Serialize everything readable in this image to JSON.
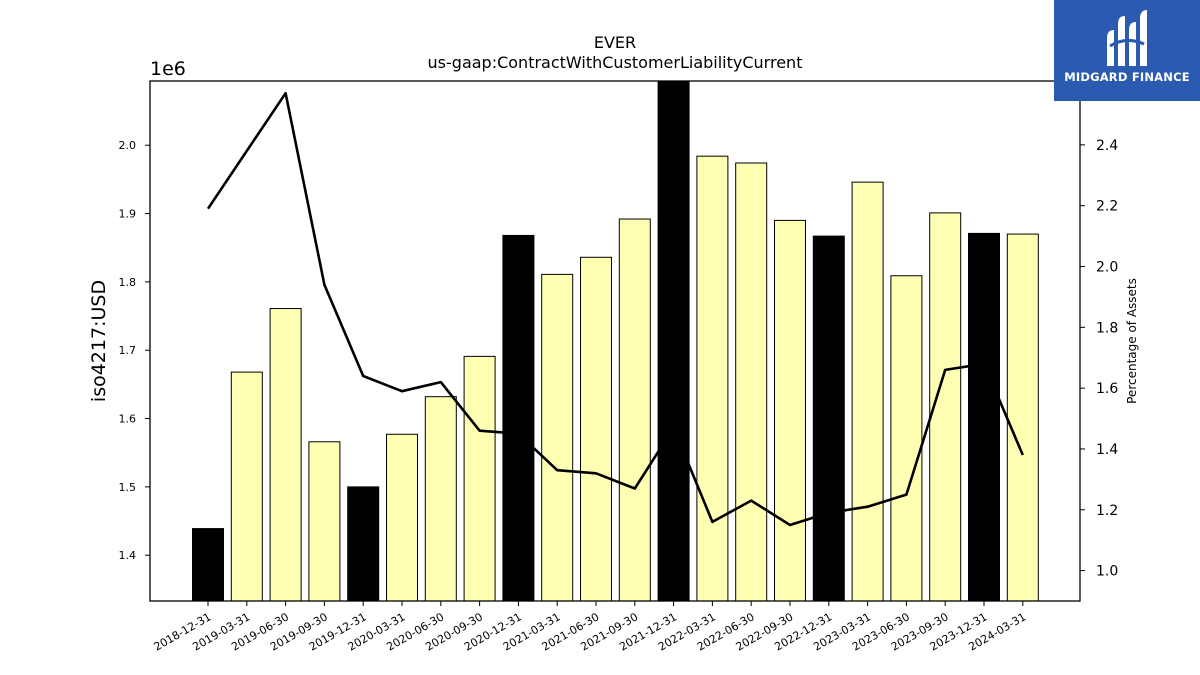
{
  "chart_data": {
    "type": "bar",
    "title": "EVER",
    "subtitle": "us-gaap:ContractWithCustomerLiabilityCurrent",
    "ylabel": "iso4217:USD",
    "y_offset_label": "1e6",
    "y2label": "Percentage of Assets",
    "categories": [
      "2018-12-31",
      "2019-03-31",
      "2019-06-30",
      "2019-09-30",
      "2019-12-31",
      "2020-03-31",
      "2020-06-30",
      "2020-09-30",
      "2020-12-31",
      "2021-03-31",
      "2021-06-30",
      "2021-09-30",
      "2021-12-31",
      "2022-03-31",
      "2022-06-30",
      "2022-09-30",
      "2022-12-31",
      "2023-03-31",
      "2023-06-30",
      "2023-09-30",
      "2023-12-31",
      "2024-03-31"
    ],
    "series": [
      {
        "values": [
          1439000,
          1668000,
          1761000,
          1566000,
          1500000,
          1577000,
          1632000,
          1691000,
          1868000,
          1811000,
          1836000,
          1892000,
          2094000,
          1984000,
          1974000,
          1890000,
          1867000,
          1946000,
          1809000,
          1901000,
          1871000,
          1870000
        ],
        "highlight": [
          true,
          false,
          false,
          false,
          true,
          false,
          false,
          false,
          true,
          false,
          false,
          false,
          true,
          false,
          false,
          false,
          true,
          false,
          false,
          false,
          true,
          false
        ],
        "colors": {
          "quarter": "#ffffb3",
          "year_end": "#000000"
        }
      },
      {
        "axis": "right",
        "type": "line",
        "color": "#000000",
        "values": [
          2.19,
          2.38,
          2.57,
          1.94,
          1.64,
          1.59,
          1.62,
          1.46,
          1.45,
          1.33,
          1.32,
          1.27,
          1.47,
          1.16,
          1.23,
          1.15,
          1.19,
          1.21,
          1.25,
          1.66,
          1.68,
          1.38
        ]
      }
    ],
    "ylim": [
      1333000,
      2094000
    ],
    "y_ticks": [
      "1.4",
      "1.5",
      "1.6",
      "1.7",
      "1.8",
      "1.9",
      "2.0"
    ],
    "y_tick_values": [
      1400000,
      1500000,
      1600000,
      1700000,
      1800000,
      1900000,
      2000000
    ],
    "y2lim": [
      0.9,
      2.61
    ],
    "y2_ticks": [
      "1.0",
      "1.2",
      "1.4",
      "1.6",
      "1.8",
      "2.0",
      "2.2",
      "2.4"
    ],
    "y2_tick_values": [
      1.0,
      1.2,
      1.4,
      1.6,
      1.8,
      2.0,
      2.2,
      2.4
    ],
    "grid": false
  },
  "logo": {
    "text": "MIDGARD FINANCE"
  }
}
